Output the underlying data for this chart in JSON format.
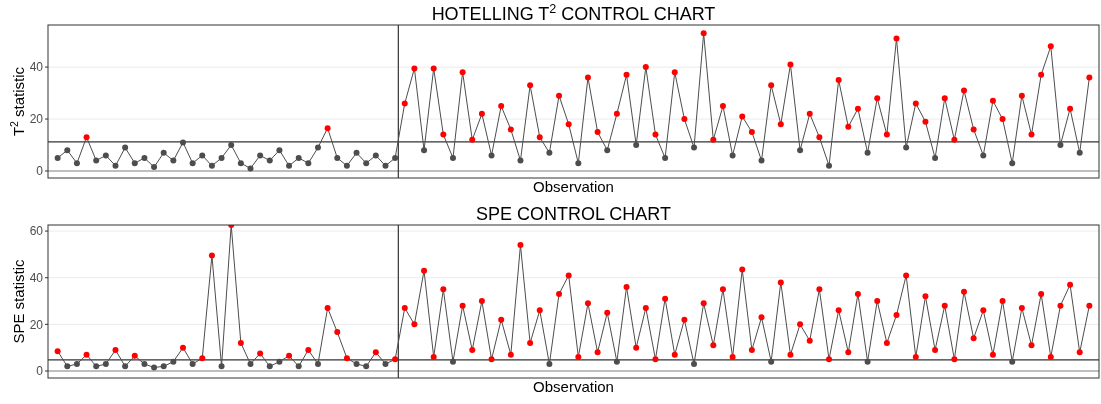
{
  "chart_data": [
    {
      "type": "line",
      "title": "HOTELLING T$^{2}$ CONTROL CHART",
      "xlabel": "Observation",
      "ylabel": "T$^{2}$ statistic",
      "categories": [
        null,
        null,
        null,
        null,
        null,
        null,
        null,
        null,
        null,
        null,
        null,
        null,
        null,
        null,
        null,
        null,
        null,
        null,
        null,
        null,
        null,
        null,
        null,
        null,
        null,
        null,
        null,
        null,
        null,
        null,
        null,
        null,
        null,
        null,
        null,
        null,
        null,
        null,
        null,
        null,
        null,
        null,
        null,
        null,
        null,
        null,
        null,
        null,
        null,
        null,
        null,
        null,
        null,
        null,
        null,
        null,
        null,
        null,
        null,
        null,
        null,
        null,
        null,
        null,
        null,
        null,
        null,
        null,
        null,
        null,
        null,
        null,
        null,
        null,
        null,
        null,
        null,
        null,
        null,
        null,
        null,
        null,
        null,
        null,
        null,
        null,
        null,
        null,
        null,
        null,
        null,
        null,
        null,
        null,
        null,
        null,
        null,
        null,
        null,
        null,
        null,
        null,
        null,
        null,
        null,
        null,
        null,
        null
      ],
      "ylim": [
        -2.7,
        56.2
      ],
      "yticks": [
        0,
        20,
        40
      ],
      "grid": "y",
      "tick_labels": "y",
      "marker": "circle",
      "line_style": "solid",
      "ref_lines": [
        {
          "axis": "y",
          "value": 11.2,
          "color": "#333333"
        },
        {
          "axis": "y",
          "value": 0,
          "color": "#888888"
        }
      ],
      "series": [
        {
          "color": "#4d4d4d",
          "values": [
            5,
            8,
            3,
            13,
            4,
            6,
            2,
            9,
            3,
            5,
            1.5,
            7,
            4,
            11,
            3,
            6,
            2,
            5,
            10,
            3,
            1,
            6,
            4,
            8,
            2,
            5,
            3,
            9,
            16.5,
            5,
            2,
            7,
            3,
            6,
            2,
            5,
            26,
            39.5,
            8,
            39.5,
            14,
            5,
            38,
            12,
            22,
            6,
            25,
            16,
            4,
            33,
            13,
            7,
            29,
            18,
            3,
            36,
            15,
            8,
            22,
            37,
            10,
            40,
            14,
            5,
            38,
            20,
            9,
            53,
            12,
            25,
            6,
            21,
            15,
            4,
            33,
            18,
            41,
            8,
            22,
            13,
            2,
            35,
            17,
            24,
            7,
            28,
            14,
            51,
            9,
            26,
            19,
            5,
            28,
            12,
            31,
            16,
            6,
            27,
            20,
            3,
            29,
            14,
            37,
            48,
            10,
            24,
            7,
            36
          ],
          "colors": [
            "#4d4d4d",
            "#4d4d4d",
            "#4d4d4d",
            "#ff0000",
            "#4d4d4d",
            "#4d4d4d",
            "#4d4d4d",
            "#4d4d4d",
            "#4d4d4d",
            "#4d4d4d",
            "#4d4d4d",
            "#4d4d4d",
            "#4d4d4d",
            "#4d4d4d",
            "#4d4d4d",
            "#4d4d4d",
            "#4d4d4d",
            "#4d4d4d",
            "#4d4d4d",
            "#4d4d4d",
            "#4d4d4d",
            "#4d4d4d",
            "#4d4d4d",
            "#4d4d4d",
            "#4d4d4d",
            "#4d4d4d",
            "#4d4d4d",
            "#4d4d4d",
            "#ff0000",
            "#4d4d4d",
            "#4d4d4d",
            "#4d4d4d",
            "#4d4d4d",
            "#4d4d4d",
            "#4d4d4d",
            "#4d4d4d",
            "#ff0000",
            "#ff0000",
            "#4d4d4d",
            "#ff0000",
            "#ff0000",
            "#4d4d4d",
            "#ff0000",
            "#ff0000",
            "#ff0000",
            "#4d4d4d",
            "#ff0000",
            "#ff0000",
            "#4d4d4d",
            "#ff0000",
            "#ff0000",
            "#4d4d4d",
            "#ff0000",
            "#ff0000",
            "#4d4d4d",
            "#ff0000",
            "#ff0000",
            "#4d4d4d",
            "#ff0000",
            "#ff0000",
            "#4d4d4d",
            "#ff0000",
            "#ff0000",
            "#4d4d4d",
            "#ff0000",
            "#ff0000",
            "#4d4d4d",
            "#ff0000",
            "#ff0000",
            "#ff0000",
            "#4d4d4d",
            "#ff0000",
            "#ff0000",
            "#4d4d4d",
            "#ff0000",
            "#ff0000",
            "#ff0000",
            "#4d4d4d",
            "#ff0000",
            "#ff0000",
            "#4d4d4d",
            "#ff0000",
            "#ff0000",
            "#ff0000",
            "#4d4d4d",
            "#ff0000",
            "#ff0000",
            "#ff0000",
            "#4d4d4d",
            "#ff0000",
            "#ff0000",
            "#4d4d4d",
            "#ff0000",
            "#ff0000",
            "#ff0000",
            "#ff0000",
            "#4d4d4d",
            "#ff0000",
            "#ff0000",
            "#4d4d4d",
            "#ff0000",
            "#ff0000",
            "#ff0000",
            "#ff0000",
            "#4d4d4d",
            "#ff0000",
            "#4d4d4d",
            "#ff0000"
          ]
        }
      ]
    },
    {
      "type": "line",
      "title": "SPE CONTROL CHART",
      "xlabel": "Observation",
      "ylabel": "SPE statistic",
      "categories": [
        null,
        null,
        null,
        null,
        null,
        null,
        null,
        null,
        null,
        null,
        null,
        null,
        null,
        null,
        null,
        null,
        null,
        null,
        null,
        null,
        null,
        null,
        null,
        null,
        null,
        null,
        null,
        null,
        null,
        null,
        null,
        null,
        null,
        null,
        null,
        null,
        null,
        null,
        null,
        null,
        null,
        null,
        null,
        null,
        null,
        null,
        null,
        null,
        null,
        null,
        null,
        null,
        null,
        null,
        null,
        null,
        null,
        null,
        null,
        null,
        null,
        null,
        null,
        null,
        null,
        null,
        null,
        null,
        null,
        null,
        null,
        null,
        null,
        null,
        null,
        null,
        null,
        null,
        null,
        null,
        null,
        null,
        null,
        null,
        null,
        null,
        null,
        null,
        null,
        null,
        null,
        null,
        null,
        null,
        null,
        null,
        null,
        null,
        null,
        null,
        null,
        null,
        null,
        null,
        null,
        null,
        null,
        null
      ],
      "ylim": [
        -3,
        62.6
      ],
      "yticks": [
        0,
        20,
        40,
        60
      ],
      "grid": "y",
      "tick_labels": "y",
      "marker": "circle",
      "line_style": "solid",
      "ref_lines": [
        {
          "axis": "y",
          "value": 4.8,
          "color": "#333333"
        },
        {
          "axis": "y",
          "value": 0,
          "color": "#888888"
        }
      ],
      "series": [
        {
          "color": "#4d4d4d",
          "values": [
            8.5,
            2,
            3,
            7,
            2,
            3,
            9,
            2,
            6.5,
            3,
            1.5,
            2,
            4,
            10,
            3,
            5.5,
            49.5,
            2,
            62.6,
            12,
            3,
            7.5,
            2,
            4,
            6.5,
            2,
            9,
            3,
            27,
            16.7,
            5.5,
            3,
            2,
            8,
            3,
            5,
            27,
            20,
            43,
            6,
            35,
            4,
            28,
            9,
            30,
            5,
            22,
            7,
            54,
            12,
            26,
            3,
            33,
            41,
            6,
            29,
            8,
            25,
            4,
            36,
            10,
            27,
            5,
            31,
            7,
            22,
            3,
            29,
            11,
            35,
            6,
            43.5,
            9,
            23,
            4,
            38,
            7,
            20,
            13,
            35,
            5,
            26,
            8,
            33,
            4,
            30,
            12,
            24,
            41,
            6,
            32,
            9,
            28,
            5,
            34,
            14,
            26,
            7,
            30,
            4,
            27,
            11,
            33,
            6,
            28,
            37,
            8,
            28
          ],
          "colors": [
            "#ff0000",
            "#4d4d4d",
            "#4d4d4d",
            "#ff0000",
            "#4d4d4d",
            "#4d4d4d",
            "#ff0000",
            "#4d4d4d",
            "#ff0000",
            "#4d4d4d",
            "#4d4d4d",
            "#4d4d4d",
            "#4d4d4d",
            "#ff0000",
            "#4d4d4d",
            "#ff0000",
            "#ff0000",
            "#4d4d4d",
            "#ff0000",
            "#ff0000",
            "#4d4d4d",
            "#ff0000",
            "#4d4d4d",
            "#4d4d4d",
            "#ff0000",
            "#4d4d4d",
            "#ff0000",
            "#4d4d4d",
            "#ff0000",
            "#ff0000",
            "#ff0000",
            "#4d4d4d",
            "#4d4d4d",
            "#ff0000",
            "#4d4d4d",
            "#ff0000",
            "#ff0000",
            "#ff0000",
            "#ff0000",
            "#ff0000",
            "#ff0000",
            "#4d4d4d",
            "#ff0000",
            "#ff0000",
            "#ff0000",
            "#ff0000",
            "#ff0000",
            "#ff0000",
            "#ff0000",
            "#ff0000",
            "#ff0000",
            "#4d4d4d",
            "#ff0000",
            "#ff0000",
            "#ff0000",
            "#ff0000",
            "#ff0000",
            "#ff0000",
            "#4d4d4d",
            "#ff0000",
            "#ff0000",
            "#ff0000",
            "#ff0000",
            "#ff0000",
            "#ff0000",
            "#ff0000",
            "#4d4d4d",
            "#ff0000",
            "#ff0000",
            "#ff0000",
            "#ff0000",
            "#ff0000",
            "#ff0000",
            "#ff0000",
            "#4d4d4d",
            "#ff0000",
            "#ff0000",
            "#ff0000",
            "#ff0000",
            "#ff0000",
            "#ff0000",
            "#ff0000",
            "#ff0000",
            "#ff0000",
            "#4d4d4d",
            "#ff0000",
            "#ff0000",
            "#ff0000",
            "#ff0000",
            "#ff0000",
            "#ff0000",
            "#ff0000",
            "#ff0000",
            "#ff0000",
            "#ff0000",
            "#ff0000",
            "#ff0000",
            "#ff0000",
            "#ff0000",
            "#4d4d4d",
            "#ff0000",
            "#ff0000",
            "#ff0000",
            "#ff0000",
            "#ff0000",
            "#ff0000",
            "#ff0000",
            "#ff0000"
          ]
        }
      ]
    }
  ]
}
